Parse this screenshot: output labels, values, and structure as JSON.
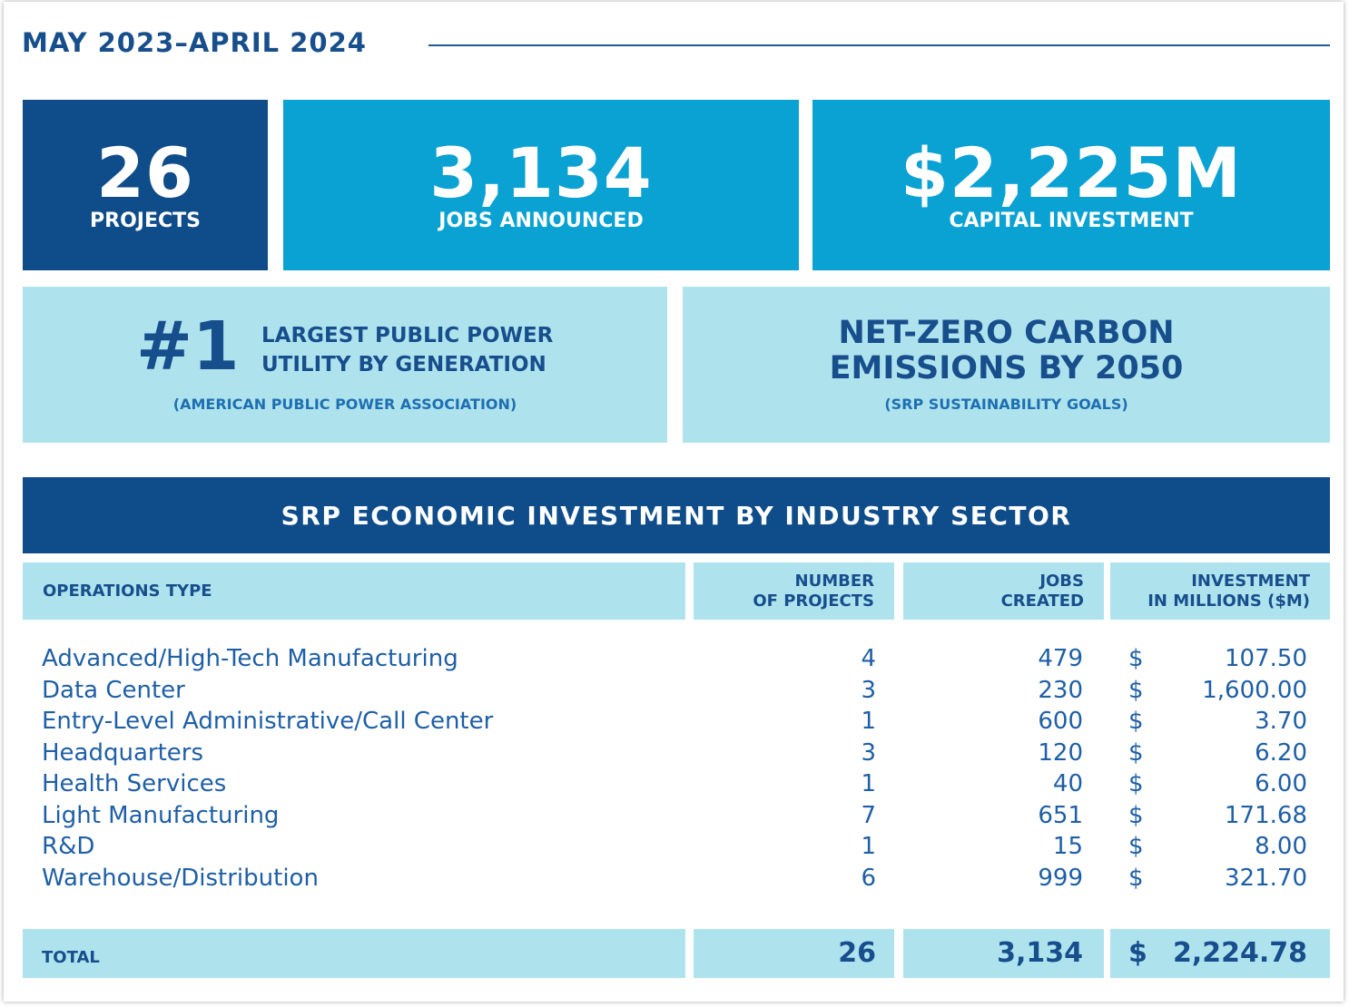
{
  "header": {
    "title": "MAY 2023–APRIL 2024"
  },
  "stats": [
    {
      "value": "26",
      "label": "PROJECTS"
    },
    {
      "value": "3,134",
      "label": "JOBS ANNOUNCED"
    },
    {
      "value": "$2,225M",
      "label": "CAPITAL INVESTMENT"
    }
  ],
  "highlights": [
    {
      "value": "#1",
      "lines": [
        "LARGEST PUBLIC POWER",
        "UTILITY BY GENERATION"
      ],
      "source": "(AMERICAN PUBLIC POWER ASSOCIATION)"
    },
    {
      "lines": [
        "NET-ZERO CARBON",
        "EMISSIONS BY 2050"
      ],
      "source": "(SRP SUSTAINABILITY GOALS)"
    }
  ],
  "table": {
    "title": "SRP ECONOMIC INVESTMENT BY INDUSTRY SECTOR",
    "columns": [
      [
        "OPERATIONS TYPE"
      ],
      [
        "NUMBER",
        "OF PROJECTS"
      ],
      [
        "JOBS",
        "CREATED"
      ],
      [
        "INVESTMENT",
        "IN MILLIONS ($M)"
      ]
    ],
    "rows": [
      [
        "Advanced/High-Tech Manufacturing",
        "4",
        "479",
        "$",
        "107.50"
      ],
      [
        "Data Center",
        "3",
        "230",
        "$",
        "1,600.00"
      ],
      [
        "Entry-Level Administrative/Call Center",
        "1",
        "600",
        "$",
        "3.70"
      ],
      [
        "Headquarters",
        "3",
        "120",
        "$",
        "6.20"
      ],
      [
        "Health Services",
        "1",
        "40",
        "$",
        "6.00"
      ],
      [
        "Light Manufacturing",
        "7",
        "651",
        "$",
        "171.68"
      ],
      [
        "R&D",
        "1",
        "15",
        "$",
        "8.00"
      ],
      [
        "Warehouse/Distribution",
        "6",
        "999",
        "$",
        "321.70"
      ]
    ],
    "total": [
      "TOTAL",
      "26",
      "3,134",
      "$",
      "2,224.78"
    ]
  }
}
